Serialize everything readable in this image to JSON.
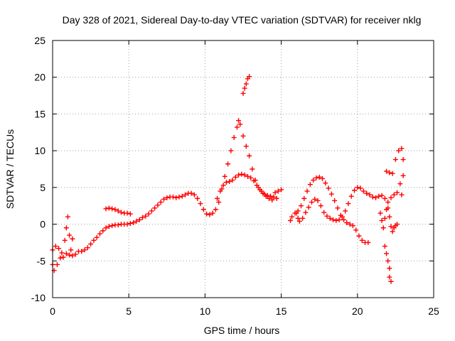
{
  "chart_data": {
    "type": "scatter",
    "title": "Day 328 of 2021, Sidereal Day-to-day VTEC variation (SDTVAR) for receiver nklg",
    "xlabel": "GPS time / hours",
    "ylabel": "SDTVAR / TECUs",
    "xlim": [
      0,
      25
    ],
    "ylim": [
      -10,
      25
    ],
    "xticks": [
      0,
      5,
      10,
      15,
      20,
      25
    ],
    "yticks": [
      -10,
      -5,
      0,
      5,
      10,
      15,
      20,
      25
    ],
    "grid": true,
    "marker": "+",
    "series": [
      {
        "name": "sdtvar",
        "color": "#ff0000",
        "points": [
          [
            0.0,
            -5.5
          ],
          [
            0.1,
            -6.3
          ],
          [
            0.3,
            -5.5
          ],
          [
            0.5,
            -4.6
          ],
          [
            0.7,
            -4.5
          ],
          [
            0.9,
            -4.0
          ],
          [
            1.1,
            -4.2
          ],
          [
            1.3,
            -4.3
          ],
          [
            1.5,
            -4.1
          ],
          [
            1.7,
            -3.7
          ],
          [
            1.9,
            -3.7
          ],
          [
            2.1,
            -3.5
          ],
          [
            2.3,
            -3.2
          ],
          [
            2.5,
            -2.7
          ],
          [
            2.7,
            -2.2
          ],
          [
            2.9,
            -1.8
          ],
          [
            3.1,
            -1.3
          ],
          [
            3.3,
            -0.9
          ],
          [
            3.5,
            -0.5
          ],
          [
            3.7,
            -0.3
          ],
          [
            3.9,
            -0.2
          ],
          [
            4.1,
            -0.1
          ],
          [
            4.3,
            -0.1
          ],
          [
            4.5,
            0.0
          ],
          [
            4.7,
            0.0
          ],
          [
            4.9,
            0.0
          ],
          [
            5.1,
            0.1
          ],
          [
            5.3,
            0.2
          ],
          [
            5.5,
            0.4
          ],
          [
            5.7,
            0.6
          ],
          [
            5.9,
            0.9
          ],
          [
            6.1,
            1.1
          ],
          [
            6.3,
            1.4
          ],
          [
            6.5,
            1.8
          ],
          [
            6.7,
            2.2
          ],
          [
            6.9,
            2.6
          ],
          [
            7.1,
            3.0
          ],
          [
            7.3,
            3.4
          ],
          [
            7.5,
            3.6
          ],
          [
            7.7,
            3.7
          ],
          [
            7.9,
            3.7
          ],
          [
            8.1,
            3.6
          ],
          [
            8.3,
            3.7
          ],
          [
            8.5,
            3.8
          ],
          [
            8.7,
            4.0
          ],
          [
            8.9,
            4.2
          ],
          [
            9.1,
            4.2
          ],
          [
            9.3,
            4.0
          ],
          [
            9.5,
            3.5
          ],
          [
            9.7,
            2.8
          ],
          [
            9.9,
            2.0
          ],
          [
            10.1,
            1.4
          ],
          [
            10.3,
            1.3
          ],
          [
            10.5,
            1.5
          ],
          [
            10.7,
            2.0
          ],
          [
            10.9,
            3.0
          ],
          [
            11.1,
            4.8
          ],
          [
            11.3,
            6.5
          ],
          [
            11.5,
            8.2
          ],
          [
            11.7,
            10.0
          ],
          [
            11.9,
            11.8
          ],
          [
            12.1,
            13.2
          ],
          [
            12.2,
            14.1
          ],
          [
            12.3,
            13.6
          ],
          [
            12.5,
            12.0
          ],
          [
            12.7,
            10.6
          ],
          [
            12.9,
            9.3
          ],
          [
            13.1,
            7.5
          ],
          [
            13.3,
            6.0
          ],
          [
            13.5,
            5.0
          ],
          [
            13.7,
            4.5
          ],
          [
            13.9,
            4.1
          ],
          [
            14.1,
            3.9
          ],
          [
            14.3,
            3.8
          ],
          [
            14.5,
            3.7
          ],
          [
            14.7,
            3.5
          ],
          [
            0.0,
            -3.5
          ],
          [
            0.2,
            -3.0
          ],
          [
            0.4,
            -3.3
          ],
          [
            0.6,
            -3.9
          ],
          [
            0.8,
            -2.2
          ],
          [
            0.9,
            -0.5
          ],
          [
            1.0,
            1.0
          ],
          [
            1.1,
            -1.5
          ],
          [
            1.2,
            -3.5
          ],
          [
            1.3,
            -2.0
          ],
          [
            3.5,
            2.1
          ],
          [
            3.7,
            2.2
          ],
          [
            3.9,
            2.1
          ],
          [
            4.1,
            2.0
          ],
          [
            4.3,
            1.8
          ],
          [
            4.5,
            1.6
          ],
          [
            4.7,
            1.5
          ],
          [
            4.9,
            1.5
          ],
          [
            5.1,
            1.4
          ],
          [
            10.8,
            3.5
          ],
          [
            11.0,
            4.5
          ],
          [
            11.2,
            5.3
          ],
          [
            11.4,
            5.7
          ],
          [
            11.6,
            5.8
          ],
          [
            11.8,
            6.0
          ],
          [
            12.0,
            6.4
          ],
          [
            12.2,
            6.7
          ],
          [
            12.4,
            6.8
          ],
          [
            12.6,
            6.7
          ],
          [
            12.8,
            6.5
          ],
          [
            13.0,
            6.3
          ],
          [
            13.2,
            5.9
          ],
          [
            13.4,
            5.3
          ],
          [
            13.6,
            4.7
          ],
          [
            13.8,
            4.2
          ],
          [
            14.0,
            3.8
          ],
          [
            14.2,
            3.5
          ],
          [
            14.4,
            3.3
          ],
          [
            12.5,
            17.8
          ],
          [
            12.6,
            18.5
          ],
          [
            12.7,
            19.1
          ],
          [
            12.8,
            19.8
          ],
          [
            12.9,
            20.1
          ],
          [
            14.6,
            4.3
          ],
          [
            14.8,
            4.5
          ],
          [
            15.0,
            4.7
          ],
          [
            15.6,
            0.5
          ],
          [
            15.7,
            1.0
          ],
          [
            15.9,
            1.5
          ],
          [
            16.1,
            1.8
          ],
          [
            16.3,
            2.5
          ],
          [
            16.5,
            3.5
          ],
          [
            16.7,
            4.5
          ],
          [
            16.9,
            5.4
          ],
          [
            17.1,
            6.0
          ],
          [
            17.3,
            6.3
          ],
          [
            17.5,
            6.4
          ],
          [
            17.7,
            6.2
          ],
          [
            17.9,
            5.6
          ],
          [
            18.1,
            4.9
          ],
          [
            18.3,
            4.1
          ],
          [
            18.5,
            3.2
          ],
          [
            18.7,
            2.2
          ],
          [
            18.9,
            1.2
          ],
          [
            19.1,
            0.6
          ],
          [
            19.3,
            0.2
          ],
          [
            19.5,
            0.0
          ],
          [
            19.7,
            -0.2
          ],
          [
            19.9,
            -0.8
          ],
          [
            20.1,
            -1.6
          ],
          [
            20.3,
            -2.2
          ],
          [
            20.5,
            -2.5
          ],
          [
            20.7,
            -2.5
          ],
          [
            16.0,
            1.5
          ],
          [
            16.1,
            0.8
          ],
          [
            16.2,
            0.4
          ],
          [
            16.4,
            0.8
          ],
          [
            16.6,
            1.6
          ],
          [
            16.8,
            2.3
          ],
          [
            17.0,
            3.0
          ],
          [
            17.2,
            3.4
          ],
          [
            17.4,
            3.2
          ],
          [
            17.6,
            2.5
          ],
          [
            17.8,
            1.6
          ],
          [
            18.0,
            1.1
          ],
          [
            18.2,
            0.8
          ],
          [
            18.4,
            0.6
          ],
          [
            18.6,
            0.5
          ],
          [
            18.8,
            0.6
          ],
          [
            19.0,
            1.0
          ],
          [
            19.2,
            1.8
          ],
          [
            19.4,
            2.8
          ],
          [
            19.6,
            3.8
          ],
          [
            19.8,
            4.6
          ],
          [
            20.0,
            5.0
          ],
          [
            20.2,
            4.9
          ],
          [
            20.4,
            4.5
          ],
          [
            20.6,
            4.2
          ],
          [
            20.8,
            4.0
          ],
          [
            21.0,
            3.7
          ],
          [
            21.2,
            3.6
          ],
          [
            21.4,
            3.8
          ],
          [
            21.6,
            3.9
          ],
          [
            21.8,
            3.5
          ],
          [
            22.0,
            3.0
          ],
          [
            22.2,
            3.6
          ],
          [
            22.4,
            4.0
          ],
          [
            22.6,
            4.3
          ],
          [
            22.8,
            5.5
          ],
          [
            21.5,
            1.5
          ],
          [
            21.6,
            0.5
          ],
          [
            21.7,
            -0.5
          ],
          [
            21.8,
            0.8
          ],
          [
            21.9,
            2.0
          ],
          [
            22.0,
            2.2
          ],
          [
            22.1,
            1.0
          ],
          [
            22.2,
            -0.3
          ],
          [
            22.3,
            -1.0
          ],
          [
            22.4,
            -0.5
          ],
          [
            22.5,
            -0.2
          ],
          [
            22.6,
            0.0
          ],
          [
            21.8,
            -3.0
          ],
          [
            21.9,
            -4.0
          ],
          [
            22.0,
            -5.0
          ],
          [
            22.1,
            -6.0
          ],
          [
            22.1,
            -7.2
          ],
          [
            22.2,
            -7.8
          ],
          [
            21.9,
            7.2
          ],
          [
            22.1,
            7.0
          ],
          [
            22.3,
            6.9
          ],
          [
            22.5,
            8.8
          ],
          [
            22.7,
            10.0
          ],
          [
            22.9,
            10.3
          ],
          [
            23.0,
            8.8
          ],
          [
            23.0,
            6.6
          ],
          [
            22.9,
            4.0
          ]
        ]
      }
    ]
  }
}
